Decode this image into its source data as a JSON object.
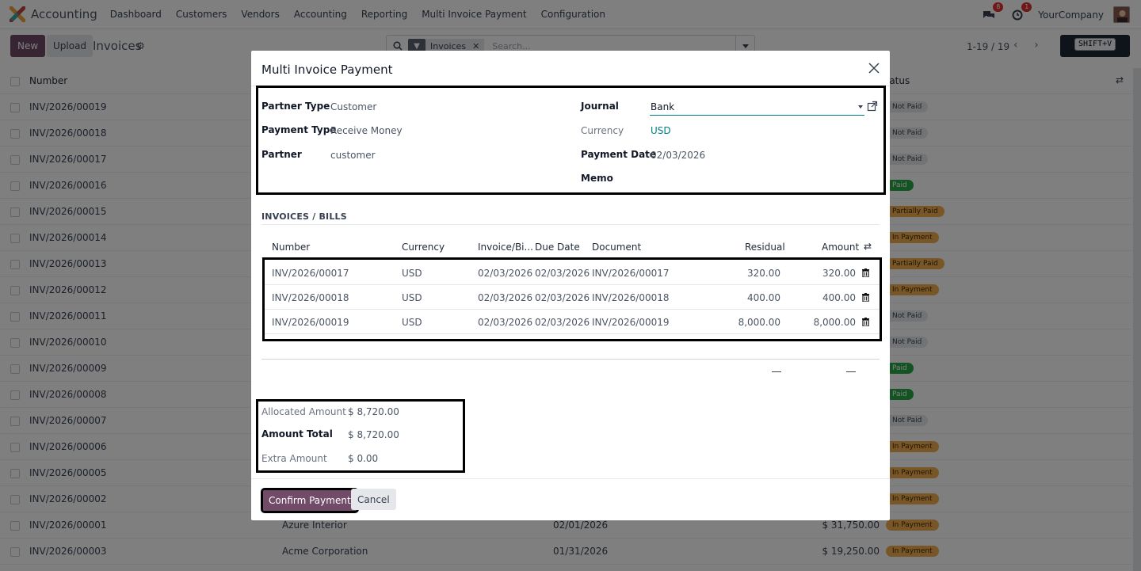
{
  "navbar": {
    "app_name": "Accounting",
    "menus": [
      "Dashboard",
      "Customers",
      "Vendors",
      "Accounting",
      "Reporting",
      "Multi Invoice Payment",
      "Configuration"
    ],
    "messages_badge": "8",
    "activity_badge": "1",
    "company": "YourCompany"
  },
  "control": {
    "new_label": "New",
    "upload_label": "Upload",
    "title": "Invoices",
    "facet": "Invoices",
    "search_placeholder": "Search...",
    "pager": "1-19 / 19",
    "shortcut_hint": "SHIFT+V"
  },
  "list": {
    "col_number": "Number",
    "col_status": "Status",
    "rows": [
      {
        "number": "INV/2026/00019",
        "customer": "",
        "date": "",
        "amount": "",
        "status": "Not Paid",
        "status_kind": "notpaid"
      },
      {
        "number": "INV/2026/00018",
        "customer": "",
        "date": "",
        "amount": "",
        "status": "Not Paid",
        "status_kind": "notpaid"
      },
      {
        "number": "INV/2026/00017",
        "customer": "",
        "date": "",
        "amount": "",
        "status": "Not Paid",
        "status_kind": "notpaid"
      },
      {
        "number": "INV/2026/00016",
        "customer": "",
        "date": "",
        "amount": "",
        "status": "Paid",
        "status_kind": "paid"
      },
      {
        "number": "INV/2026/00015",
        "customer": "",
        "date": "",
        "amount": "",
        "status": "Partially Paid",
        "status_kind": "partial"
      },
      {
        "number": "INV/2026/00014",
        "customer": "",
        "date": "",
        "amount": "",
        "status": "In Payment",
        "status_kind": "inpay"
      },
      {
        "number": "INV/2026/00013",
        "customer": "",
        "date": "",
        "amount": "",
        "status": "Partially Paid",
        "status_kind": "partial"
      },
      {
        "number": "INV/2026/00012",
        "customer": "",
        "date": "",
        "amount": "",
        "status": "In Payment",
        "status_kind": "inpay"
      },
      {
        "number": "INV/2026/00011",
        "customer": "",
        "date": "",
        "amount": "",
        "status": "Not Paid",
        "status_kind": "notpaid"
      },
      {
        "number": "INV/2026/00010",
        "customer": "",
        "date": "",
        "amount": "",
        "status": "Not Paid",
        "status_kind": "notpaid"
      },
      {
        "number": "INV/2026/00009",
        "customer": "",
        "date": "",
        "amount": "",
        "status": "Paid",
        "status_kind": "paid"
      },
      {
        "number": "INV/2026/00008",
        "customer": "",
        "date": "",
        "amount": "",
        "status": "Paid",
        "status_kind": "paid"
      },
      {
        "number": "INV/2026/00007",
        "customer": "",
        "date": "",
        "amount": "",
        "status": "Not Paid",
        "status_kind": "notpaid"
      },
      {
        "number": "INV/2026/00006",
        "customer": "",
        "date": "",
        "amount": "",
        "status": "In Payment",
        "status_kind": "inpay"
      },
      {
        "number": "INV/2026/00005",
        "customer": "",
        "date": "",
        "amount": "",
        "status": "In Payment",
        "status_kind": "inpay"
      },
      {
        "number": "INV/2026/00002",
        "customer": "",
        "date": "",
        "amount": "",
        "status": "In Payment",
        "status_kind": "inpay"
      },
      {
        "number": "INV/2026/00001",
        "customer": "Azure Interior",
        "date": "02/01/2026",
        "amount": "$ 31,750.00",
        "status": "In Payment",
        "status_kind": "inpay"
      },
      {
        "number": "INV/2026/00003",
        "customer": "Acme Corporation",
        "date": "01/31/2026",
        "amount": "$ 19,250.00",
        "status": "In Payment",
        "status_kind": "inpay"
      },
      {
        "number": "",
        "customer": "",
        "date": "",
        "amount": "",
        "status": "",
        "status_kind": "red"
      }
    ]
  },
  "modal": {
    "title": "Multi Invoice Payment",
    "partner_type_label": "Partner Type",
    "partner_type_value": "Customer",
    "payment_type_label": "Payment Type",
    "payment_type_value": "Receive Money",
    "partner_label": "Partner",
    "partner_value": "customer",
    "journal_label": "Journal",
    "journal_value": "Bank",
    "currency_label": "Currency",
    "currency_value": "USD",
    "payment_date_label": "Payment Date",
    "payment_date_value": "02/03/2026",
    "memo_label": "Memo",
    "section_title": "INVOICES / BILLS",
    "columns": {
      "number": "Number",
      "currency": "Currency",
      "invoice_date": "Invoice/Bi...",
      "due_date": "Due Date",
      "document": "Document",
      "residual": "Residual",
      "amount": "Amount"
    },
    "lines": [
      {
        "number": "INV/2026/00017",
        "currency": "USD",
        "invoice_date": "02/03/2026",
        "due_date": "02/03/2026",
        "document": "INV/2026/00017",
        "residual": "320.00",
        "amount": "320.00"
      },
      {
        "number": "INV/2026/00018",
        "currency": "USD",
        "invoice_date": "02/03/2026",
        "due_date": "02/03/2026",
        "document": "INV/2026/00018",
        "residual": "400.00",
        "amount": "400.00"
      },
      {
        "number": "INV/2026/00019",
        "currency": "USD",
        "invoice_date": "02/03/2026",
        "due_date": "02/03/2026",
        "document": "INV/2026/00019",
        "residual": "8,000.00",
        "amount": "8,000.00"
      }
    ],
    "allocated_label": "Allocated Amount",
    "allocated_value": "$ 8,720.00",
    "total_label": "Amount Total",
    "total_value": "$ 8,720.00",
    "extra_label": "Extra Amount",
    "extra_value": "$ 0.00",
    "confirm_label": "Confirm Payment",
    "cancel_label": "Cancel"
  },
  "colors": {
    "brand": "#714B67",
    "link": "#017e84",
    "paid": "#28a745",
    "in_payment": "#f0ad4e"
  }
}
